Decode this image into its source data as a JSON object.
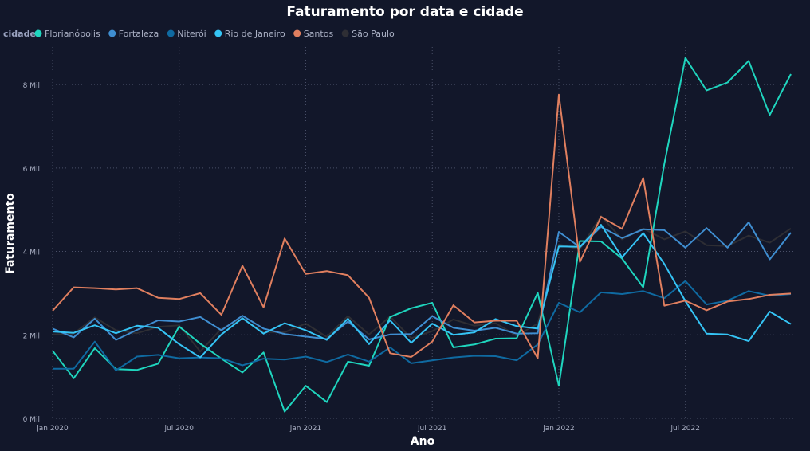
{
  "chart_data": {
    "type": "line",
    "title": "Faturamento por data e cidade",
    "xlabel": "Ano",
    "ylabel": "Faturamento",
    "legend_title": "cidade",
    "legend_position": "top-left",
    "grid": true,
    "ylim": [
      0,
      8900
    ],
    "yticks": [
      {
        "value": 0,
        "label": "0 Mil"
      },
      {
        "value": 2000,
        "label": "2 Mil"
      },
      {
        "value": 4000,
        "label": "4 Mil"
      },
      {
        "value": 6000,
        "label": "6 Mil"
      },
      {
        "value": 8000,
        "label": "8 Mil"
      }
    ],
    "xticks": [
      {
        "index": 0,
        "label": "jan 2020"
      },
      {
        "index": 6,
        "label": "jul 2020"
      },
      {
        "index": 12,
        "label": "jan 2021"
      },
      {
        "index": 18,
        "label": "jul 2021"
      },
      {
        "index": 24,
        "label": "jan 2022"
      },
      {
        "index": 30,
        "label": "jul 2022"
      }
    ],
    "x": [
      "2020-01",
      "2020-02",
      "2020-03",
      "2020-04",
      "2020-05",
      "2020-06",
      "2020-07",
      "2020-08",
      "2020-09",
      "2020-10",
      "2020-11",
      "2020-12",
      "2021-01",
      "2021-02",
      "2021-03",
      "2021-04",
      "2021-05",
      "2021-06",
      "2021-07",
      "2021-08",
      "2021-09",
      "2021-10",
      "2021-11",
      "2021-12",
      "2022-01",
      "2022-02",
      "2022-03",
      "2022-04",
      "2022-05",
      "2022-06",
      "2022-07",
      "2022-08",
      "2022-09",
      "2022-10",
      "2022-11",
      "2022-12"
    ],
    "series": [
      {
        "name": "Florianópolis",
        "color": "#1fd5be",
        "values": [
          1620,
          960,
          1680,
          1180,
          1160,
          1310,
          2200,
          1790,
          1430,
          1100,
          1580,
          160,
          780,
          390,
          1360,
          1260,
          2430,
          2640,
          2770,
          1700,
          1770,
          1910,
          1920,
          3010,
          780,
          4250,
          4240,
          3830,
          3140,
          6100,
          8640,
          7860,
          8050,
          8570,
          7270,
          8250
        ]
      },
      {
        "name": "Fortaleza",
        "color": "#3f8ed1",
        "values": [
          2150,
          1940,
          2390,
          1880,
          2120,
          2350,
          2320,
          2430,
          2110,
          2460,
          2150,
          2020,
          1960,
          1900,
          2320,
          1890,
          2010,
          2020,
          2450,
          2170,
          2100,
          2170,
          2030,
          2040,
          4470,
          4100,
          4590,
          4320,
          4530,
          4510,
          4090,
          4560,
          4090,
          4700,
          3810,
          4450
        ]
      },
      {
        "name": "Niterói",
        "color": "#0f6aa1",
        "values": [
          1190,
          1190,
          1840,
          1150,
          1480,
          1520,
          1440,
          1460,
          1440,
          1270,
          1430,
          1410,
          1480,
          1350,
          1530,
          1360,
          1700,
          1320,
          1390,
          1460,
          1500,
          1490,
          1390,
          1770,
          2770,
          2540,
          3020,
          2980,
          3050,
          2880,
          3290,
          2730,
          2820,
          3050,
          2940,
          2980
        ]
      },
      {
        "name": "Rio de Janeiro",
        "color": "#35c4f5",
        "values": [
          2080,
          2050,
          2230,
          2040,
          2220,
          2170,
          1780,
          1460,
          2010,
          2400,
          2030,
          2280,
          2110,
          1880,
          2390,
          1780,
          2350,
          1810,
          2270,
          2000,
          2060,
          2380,
          2210,
          2150,
          4120,
          4110,
          4640,
          3860,
          4440,
          3700,
          2810,
          2030,
          2010,
          1850,
          2560,
          2260
        ]
      },
      {
        "name": "Santos",
        "color": "#e07f5f",
        "values": [
          2580,
          3140,
          3120,
          3090,
          3120,
          2890,
          2860,
          3000,
          2480,
          3660,
          2660,
          4310,
          3460,
          3530,
          3430,
          2890,
          1560,
          1470,
          1840,
          2710,
          2300,
          2340,
          2340,
          1440,
          7760,
          3750,
          4830,
          4540,
          5760,
          2700,
          2820,
          2590,
          2800,
          2860,
          2960,
          2990
        ]
      },
      {
        "name": "São Paulo",
        "color": "#2e2e34",
        "values": [
          2010,
          2030,
          2420,
          2110,
          2040,
          2190,
          2230,
          1600,
          2150,
          2390,
          2070,
          2060,
          2270,
          1950,
          2450,
          2010,
          2440,
          1920,
          2090,
          2370,
          2220,
          2280,
          1980,
          2270,
          4170,
          4050,
          4850,
          4290,
          4550,
          4290,
          4480,
          4150,
          4130,
          4380,
          4210,
          4550
        ]
      }
    ]
  }
}
